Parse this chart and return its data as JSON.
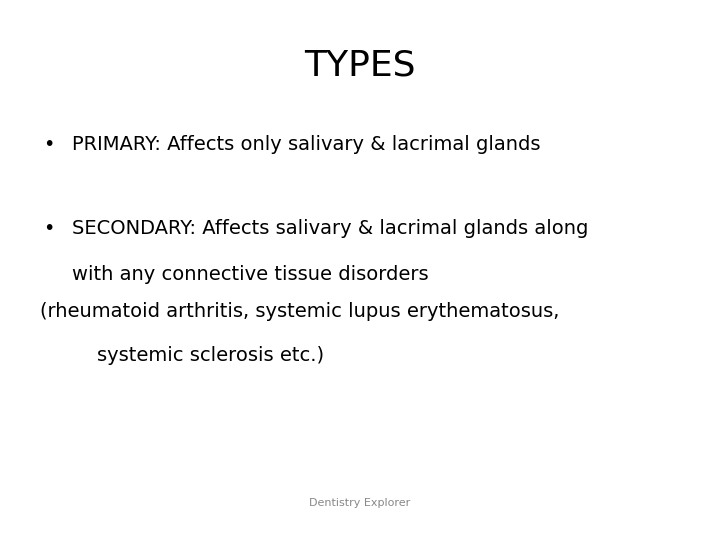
{
  "title": "TYPES",
  "title_fontsize": 26,
  "title_font": "DejaVu Sans",
  "background_color": "#ffffff",
  "text_color": "#000000",
  "bullet1": "PRIMARY: Affects only salivary & lacrimal glands",
  "bullet2_line1": "SECONDARY: Affects salivary & lacrimal glands along",
  "bullet2_line2": "with any connective tissue disorders",
  "bullet2_line3": "(rheumatoid arthritis, systemic lupus erythematosus,",
  "bullet2_line4": "    systemic sclerosis etc.)",
  "footer": "Dentistry Explorer",
  "bullet_fontsize": 14,
  "footer_fontsize": 8
}
